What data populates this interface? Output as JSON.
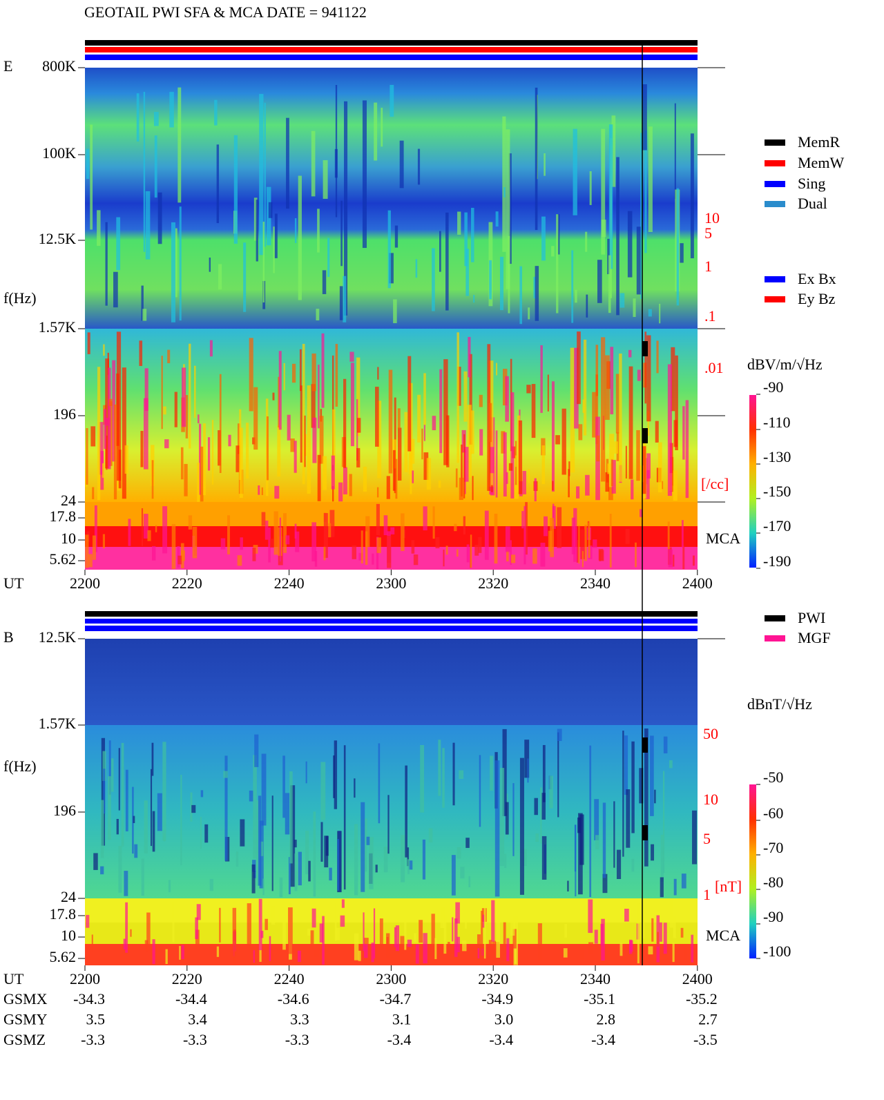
{
  "header": {
    "title": "GEOTAIL  PWI SFA & MCA   DATE = 941122"
  },
  "e_panel": {
    "label": "E",
    "freq_labels": [
      "800K",
      "100K",
      "12.5K",
      "1.57K",
      "196",
      "24",
      "17.8",
      "10",
      "5.62"
    ],
    "f_label": "f(Hz)",
    "mca": "MCA",
    "density_ticks": [
      "10",
      "5",
      "1",
      ".1",
      ".01"
    ],
    "density_unit": "[/cc]",
    "ut": {
      "label": "UT",
      "ticks": [
        "2200",
        "2220",
        "2240",
        "2300",
        "2320",
        "2340",
        "2400"
      ]
    },
    "mode_legend": [
      {
        "name": "MemR",
        "color": "#000000"
      },
      {
        "name": "MemW",
        "color": "#ff0000"
      },
      {
        "name": "Sing",
        "color": "#0000ff"
      },
      {
        "name": "Dual",
        "color": "#2a8ccc"
      }
    ],
    "antenna_legend": [
      {
        "name": "Ex Bx",
        "color": "#0000ff"
      },
      {
        "name": "Ey Bz",
        "color": "#ff0000"
      }
    ],
    "colorbar": {
      "unit": "dBV/m/√Hz",
      "ticks": [
        -90,
        -110,
        -130,
        -150,
        -170,
        -190
      ]
    }
  },
  "b_panel": {
    "label": "B",
    "freq_labels": [
      "12.5K",
      "1.57K",
      "196",
      "24",
      "17.8",
      "10",
      "5.62"
    ],
    "f_label": "f(Hz)",
    "mca": "MCA",
    "field_ticks": [
      "50",
      "10",
      "5",
      "1"
    ],
    "field_unit": "[nT]",
    "ut": {
      "label": "UT",
      "ticks": [
        "2200",
        "2220",
        "2240",
        "2300",
        "2320",
        "2340",
        "2400"
      ]
    },
    "legend": [
      {
        "name": "PWI",
        "color": "#000000"
      },
      {
        "name": "MGF",
        "color": "#ff1493"
      }
    ],
    "colorbar": {
      "unit": "dBnT/√Hz",
      "ticks": [
        -50,
        -60,
        -70,
        -80,
        -90,
        -100
      ]
    }
  },
  "orbit": [
    {
      "name": "GSMX",
      "values": [
        "-34.3",
        "-34.4",
        "-34.6",
        "-34.7",
        "-34.9",
        "-35.1",
        "-35.2"
      ]
    },
    {
      "name": "GSMY",
      "values": [
        "3.5",
        "3.4",
        "3.3",
        "3.1",
        "3.0",
        "2.8",
        "2.7"
      ]
    },
    {
      "name": "GSMZ",
      "values": [
        "-3.3",
        "-3.3",
        "-3.3",
        "-3.4",
        "-3.4",
        "-3.4",
        "-3.5"
      ]
    }
  ]
}
